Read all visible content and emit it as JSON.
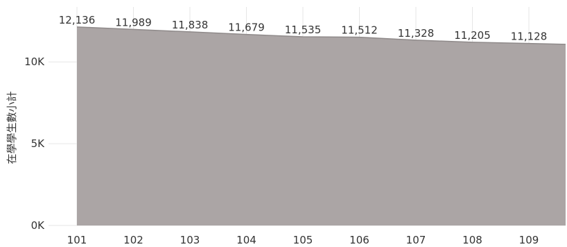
{
  "chart_data": {
    "type": "area",
    "x": [
      "101",
      "102",
      "103",
      "104",
      "105",
      "106",
      "107",
      "108",
      "109"
    ],
    "series": [
      {
        "values": [
          12136,
          11989,
          11838,
          11679,
          11535,
          11512,
          11328,
          11205,
          11128
        ],
        "labels": [
          "12,136",
          "11,989",
          "11,838",
          "11,679",
          "11,535",
          "11,512",
          "11,328",
          "11,205",
          "11,128"
        ]
      }
    ],
    "title": "",
    "xlabel": "",
    "ylabel": "在學學生數小計",
    "ylim": [
      0,
      13000
    ],
    "yticks": [
      0,
      5000,
      10000
    ],
    "ytick_labels": [
      "0K",
      "5K",
      "10K"
    ],
    "grid": true,
    "legend": "none",
    "colors": {
      "area": "#aba5a5",
      "line": "#8f8a8a",
      "grid": "#e6e6e6"
    }
  }
}
